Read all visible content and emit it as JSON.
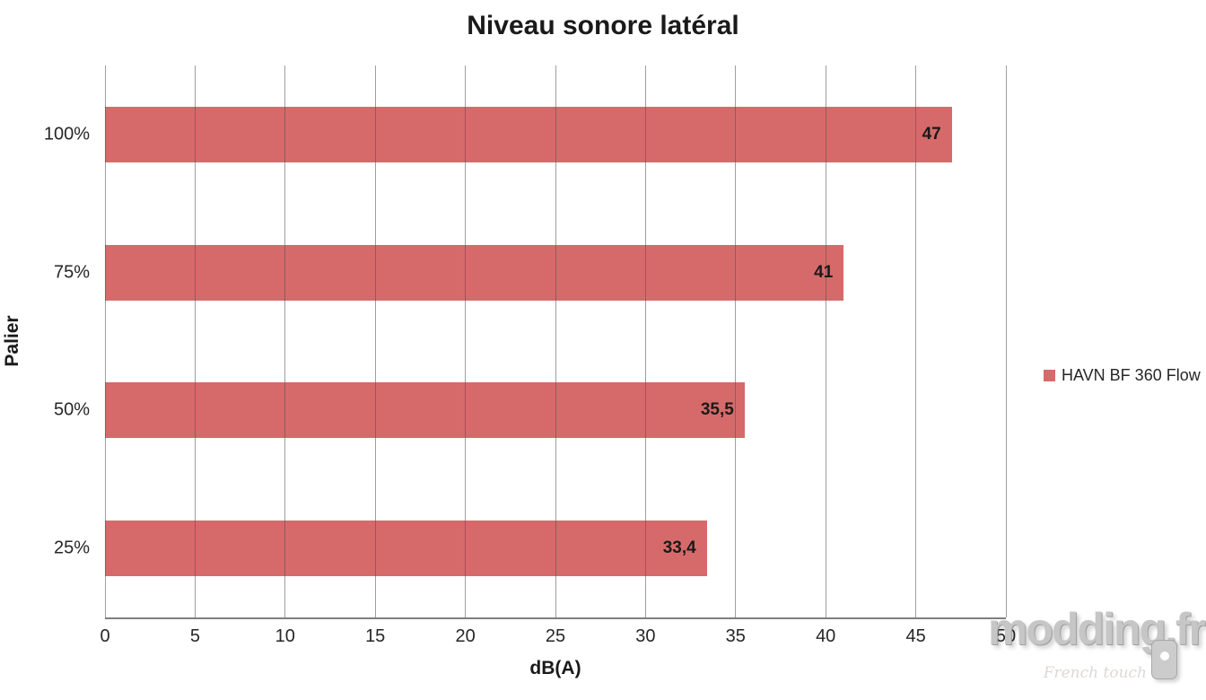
{
  "colors": {
    "bar": "#d66a6a",
    "gridline_over_white": "#a4a4a4",
    "axis_line": "#7f7f7f",
    "text": "#1a1a1a",
    "tick_text": "#262626",
    "watermark_gray": "#c6c6c6"
  },
  "legend": {
    "label": "HAVN BF 360 Flow",
    "marker_color": "#d66a6a",
    "position": "right"
  },
  "watermark": {
    "text": "modding.fr",
    "subtext": "French touch"
  },
  "chart_data": {
    "type": "bar",
    "orientation": "horizontal",
    "title": "Niveau sonore latéral",
    "xlabel": "dB(A)",
    "ylabel": "Palier",
    "categories": [
      "25%",
      "50%",
      "75%",
      "100%"
    ],
    "category_order_on_screen_top_to_bottom": [
      "100%",
      "75%",
      "50%",
      "25%"
    ],
    "series": [
      {
        "name": "HAVN BF 360 Flow",
        "values": [
          33.4,
          35.5,
          41,
          47
        ]
      }
    ],
    "value_labels": [
      "33,4",
      "35,5",
      "41",
      "47"
    ],
    "xlim": [
      0,
      50
    ],
    "xticks": [
      0,
      5,
      10,
      15,
      20,
      25,
      30,
      35,
      40,
      45,
      50
    ],
    "xtick_labels": [
      "0",
      "5",
      "10",
      "15",
      "20",
      "25",
      "30",
      "35",
      "40",
      "45",
      "50"
    ],
    "grid": true,
    "grid_axis": "x",
    "gridlines_drawn_over_bars": true,
    "legend_position": "right",
    "background": "#ffffff"
  }
}
